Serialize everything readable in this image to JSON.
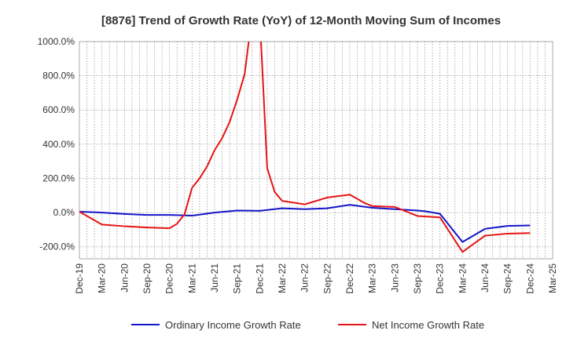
{
  "chart_data": {
    "type": "line",
    "title": "[8876]  Trend of Growth Rate (YoY) of 12-Month Moving Sum of Incomes",
    "xlabel": "",
    "ylabel": "",
    "ylim": [
      -270,
      1000
    ],
    "y_ticks": [
      1000,
      800,
      600,
      400,
      200,
      0,
      -200
    ],
    "y_tick_labels": [
      "1000.0%",
      "800.0%",
      "600.0%",
      "400.0%",
      "200.0%",
      "0.0%",
      "-200.0%"
    ],
    "x_tick_labels": [
      "Dec-19",
      "Mar-20",
      "Jun-20",
      "Sep-20",
      "Dec-20",
      "Mar-21",
      "Jun-21",
      "Sep-21",
      "Dec-21",
      "Mar-22",
      "Jun-22",
      "Sep-22",
      "Dec-22",
      "Mar-23",
      "Jun-23",
      "Sep-23",
      "Dec-23",
      "Mar-24",
      "Jun-24",
      "Sep-24",
      "Dec-24",
      "Mar-25"
    ],
    "x_months": [
      "Dec-19",
      "Jan-20",
      "Feb-20",
      "Mar-20",
      "Apr-20",
      "May-20",
      "Jun-20",
      "Jul-20",
      "Aug-20",
      "Sep-20",
      "Oct-20",
      "Nov-20",
      "Dec-20",
      "Jan-21",
      "Feb-21",
      "Mar-21",
      "Apr-21",
      "May-21",
      "Jun-21",
      "Jul-21",
      "Aug-21",
      "Sep-21",
      "Oct-21",
      "Nov-21",
      "Dec-21",
      "Jan-22",
      "Feb-22",
      "Mar-22",
      "Apr-22",
      "May-22",
      "Jun-22",
      "Jul-22",
      "Aug-22",
      "Sep-22",
      "Oct-22",
      "Nov-22",
      "Dec-22",
      "Jan-23",
      "Feb-23",
      "Mar-23",
      "Apr-23",
      "May-23",
      "Jun-23",
      "Jul-23",
      "Aug-23",
      "Sep-23",
      "Oct-23",
      "Nov-23",
      "Dec-23",
      "Jan-24",
      "Feb-24",
      "Mar-24",
      "Apr-24",
      "May-24",
      "Jun-24",
      "Jul-24",
      "Aug-24",
      "Sep-24",
      "Oct-24",
      "Nov-24",
      "Dec-24",
      "Jan-25",
      "Feb-25",
      "Mar-25"
    ],
    "grid": true,
    "legend_position": "bottom",
    "series": [
      {
        "name": "Ordinary Income Growth Rate",
        "color": "#1414c8",
        "points": [
          [
            "Dec-19",
            5
          ],
          [
            "Mar-20",
            0
          ],
          [
            "Jun-20",
            -8
          ],
          [
            "Sep-20",
            -14
          ],
          [
            "Dec-20",
            -14
          ],
          [
            "Mar-21",
            -18
          ],
          [
            "Jun-21",
            0
          ],
          [
            "Sep-21",
            12
          ],
          [
            "Dec-21",
            10
          ],
          [
            "Mar-22",
            25
          ],
          [
            "Jun-22",
            20
          ],
          [
            "Sep-22",
            25
          ],
          [
            "Dec-22",
            45
          ],
          [
            "Mar-23",
            28
          ],
          [
            "Jun-23",
            20
          ],
          [
            "Sep-23",
            12
          ],
          [
            "Oct-23",
            8
          ],
          [
            "Dec-23",
            -7
          ],
          [
            "Mar-24",
            -172
          ],
          [
            "Jun-24",
            -95
          ],
          [
            "Sep-24",
            -78
          ],
          [
            "Dec-24",
            -75
          ]
        ]
      },
      {
        "name": "Net Income Growth Rate",
        "color": "#e61414",
        "points": [
          [
            "Dec-19",
            5
          ],
          [
            "Mar-20",
            -70
          ],
          [
            "Jun-20",
            -80
          ],
          [
            "Sep-20",
            -87
          ],
          [
            "Dec-20",
            -92
          ],
          [
            "Jan-21",
            -65
          ],
          [
            "Feb-21",
            -10
          ],
          [
            "Mar-21",
            145
          ],
          [
            "Apr-21",
            200
          ],
          [
            "May-21",
            270
          ],
          [
            "Jun-21",
            365
          ],
          [
            "Jul-21",
            435
          ],
          [
            "Aug-21",
            530
          ],
          [
            "Sep-21",
            660
          ],
          [
            "Oct-21",
            810
          ],
          [
            "Nov-21",
            1160
          ],
          [
            "Dec-21",
            1160
          ],
          [
            "Jan-22",
            260
          ],
          [
            "Feb-22",
            120
          ],
          [
            "Mar-22",
            68
          ],
          [
            "Jun-22",
            48
          ],
          [
            "Sep-22",
            88
          ],
          [
            "Dec-22",
            105
          ],
          [
            "Jan-23",
            80
          ],
          [
            "Feb-23",
            55
          ],
          [
            "Mar-23",
            38
          ],
          [
            "Jun-23",
            33
          ],
          [
            "Sep-23",
            -20
          ],
          [
            "Dec-23",
            -28
          ],
          [
            "Mar-24",
            -230
          ],
          [
            "Jun-24",
            -135
          ],
          [
            "Sep-24",
            -123
          ],
          [
            "Dec-24",
            -120
          ]
        ]
      }
    ]
  }
}
